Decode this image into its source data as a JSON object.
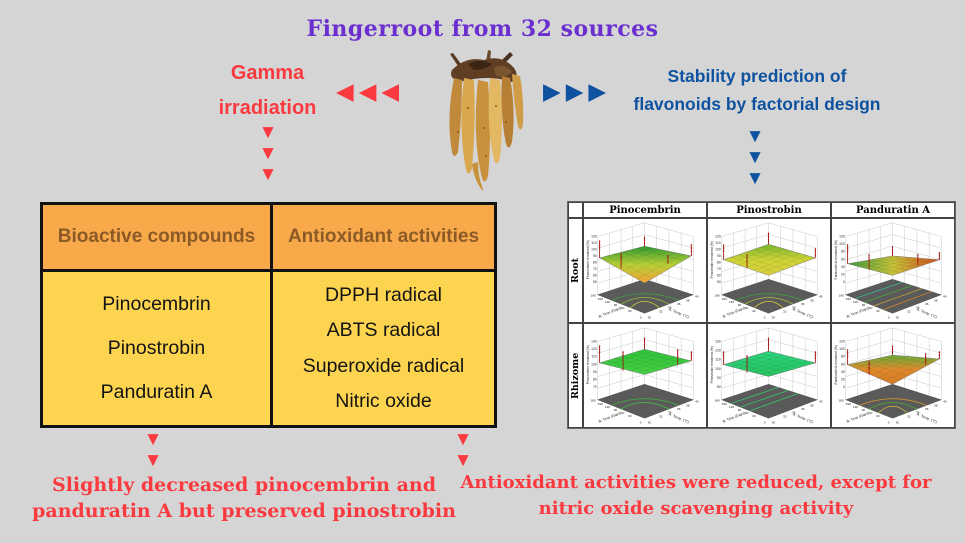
{
  "colors": {
    "background": "#d5d5d6",
    "title_purple": "#6b2fd0",
    "flow_red": "#fb3a40",
    "flow_blue": "#0e52a0",
    "table_header_bg": "#f8a94a",
    "table_header_text": "#8c5a26",
    "table_body_bg": "#fdd44f",
    "table_border": "#111111"
  },
  "title": {
    "text": "Fingerroot from 32 sources"
  },
  "glyphs": {
    "left_arrow": "◀",
    "right_arrow": "▶",
    "down_arrow": "▼"
  },
  "flow": {
    "gamma": {
      "line1": "Gamma",
      "line2": "irradiation"
    },
    "stability": {
      "line1": "Stability prediction of",
      "line2": "flavonoids by factorial design"
    }
  },
  "center_image": {
    "description": "photograph of fingerroot (Boesenbergia) rhizome cluster"
  },
  "table": {
    "headers": [
      "Bioactive compounds",
      "Antioxidant activities"
    ],
    "bioactive": [
      "Pinocembrin",
      "Pinostrobin",
      "Panduratin A"
    ],
    "antioxidant": [
      "DPPH radical",
      "ABTS radical",
      "Superoxide radical",
      "Nitric oxide"
    ]
  },
  "conclusions": {
    "left": {
      "line1": "Slightly decreased pinocembrin and",
      "line2": "panduratin A but preserved pinostrobin"
    },
    "right": {
      "line1": "Antioxidant activities were reduced, except for",
      "line2": "nitric oxide scavenging activity"
    }
  },
  "panel": {
    "columns": [
      "Pinocembrin",
      "Pinostrobin",
      "Panduratin A"
    ],
    "rows": [
      "Root",
      "Rhizome"
    ]
  },
  "chart_data": [
    {
      "row": "Root",
      "column": "Pinocembrin",
      "type": "surface3d",
      "zlabel": "Pinocembrin remained (%)",
      "zticks": [
        120,
        110,
        100,
        90,
        80,
        70,
        60,
        50
      ],
      "xlabel": "A: Temp. (°C)",
      "xticks": [
        30,
        32,
        34,
        36,
        38,
        40
      ],
      "ylabel": "B: Time (Days)",
      "yticks": [
        0,
        30,
        60,
        90,
        120,
        150,
        180
      ],
      "surface": "saddle surface, green centre with yellow-orange edges, red data stems, contour floor",
      "render": {
        "corners": [
          40,
          28,
          38,
          66
        ],
        "grad": [
          "#2f9a30",
          "#b8cf36",
          "#f0a23a"
        ],
        "gradAxis": "v",
        "contourType": "arc",
        "contourColors": [
          "#3f9e3f",
          "#8fbe3a",
          "#cfc93a"
        ],
        "stems": [
          [
            16,
            40,
            18
          ],
          [
            38,
            51,
            16
          ],
          [
            62,
            28,
            10
          ],
          [
            86,
            46,
            9
          ],
          [
            110,
            38,
            12
          ]
        ]
      }
    },
    {
      "row": "Root",
      "column": "Pinostrobin",
      "type": "surface3d",
      "zlabel": "Pinostrobin remained (%)",
      "zticks": [
        120,
        110,
        100,
        90,
        80,
        70,
        60,
        50
      ],
      "xlabel": "A: Temp. (°C)",
      "xticks": [
        30,
        32,
        34,
        36,
        38,
        40
      ],
      "ylabel": "B: Time (Days)",
      "yticks": [
        0,
        30,
        60,
        90,
        120,
        150,
        180
      ],
      "surface": "flat yellow-green tilted plane, red data stems, contour floor",
      "render": {
        "corners": [
          42,
          26,
          40,
          58
        ],
        "grad": [
          "#79b52e",
          "#cdd437",
          "#d8cf3a"
        ],
        "gradAxis": "v",
        "contourType": "arc",
        "contourColors": [
          "#3f9e3f",
          "#9fc43a",
          "#d8c93a"
        ],
        "stems": [
          [
            16,
            42,
            16
          ],
          [
            40,
            50,
            14
          ],
          [
            62,
            26,
            12
          ],
          [
            110,
            40,
            10
          ]
        ]
      }
    },
    {
      "row": "Root",
      "column": "Panduratin A",
      "type": "surface3d",
      "zlabel": "Panduratin A remained (%)",
      "zticks": [
        120,
        100,
        80,
        60,
        40,
        20,
        0
      ],
      "xlabel": "A: Temp. (°C)",
      "xticks": [
        30,
        32,
        34,
        36,
        38,
        40
      ],
      "ylabel": "B: Time (Days)",
      "yticks": [
        0,
        30,
        60,
        90,
        120,
        150,
        180
      ],
      "surface": "thin tilted surface, green left grading to red-orange right, red data stems",
      "render": {
        "corners": [
          46,
          38,
          42,
          58
        ],
        "grad": [
          "#3f9e3f",
          "#c9c23a",
          "#cf4a1e"
        ],
        "gradAxis": "h",
        "contourType": "line",
        "contourColors": [
          "#3ab8a0",
          "#4aa83a",
          "#c9a23a",
          "#d8862c"
        ],
        "stems": [
          [
            16,
            46,
            20
          ],
          [
            38,
            52,
            16
          ],
          [
            62,
            38,
            10
          ],
          [
            88,
            48,
            12
          ],
          [
            110,
            42,
            8
          ]
        ]
      }
    },
    {
      "row": "Rhizome",
      "column": "Pinocembrin",
      "type": "surface3d",
      "zlabel": "Pinocembrin remained (%)",
      "zticks": [
        130,
        120,
        110,
        100,
        90,
        80,
        70
      ],
      "xlabel": "A: Temp. (°C)",
      "xticks": [
        30,
        32,
        34,
        36,
        38,
        40
      ],
      "ylabel": "B: Time (Days)",
      "yticks": [
        0,
        30,
        60,
        90,
        120,
        150,
        180
      ],
      "surface": "flat bright-green plane, red data stems, sparse contour floor",
      "render": {
        "corners": [
          40,
          26,
          38,
          52
        ],
        "grad": [
          "#2ec43a",
          "#49cf45"
        ],
        "gradAxis": "v",
        "contourType": "arc",
        "contourColors": [
          "#3fae3f",
          "#4abf4a"
        ],
        "stems": [
          [
            16,
            40,
            18
          ],
          [
            40,
            48,
            20
          ],
          [
            62,
            26,
            12
          ],
          [
            96,
            42,
            16
          ],
          [
            110,
            38,
            10
          ]
        ]
      }
    },
    {
      "row": "Rhizome",
      "column": "Pinostrobin",
      "type": "surface3d",
      "zlabel": "Pinostrobin remained (%)",
      "zticks": [
        130,
        120,
        110,
        100,
        90,
        80
      ],
      "xlabel": "A: Temp. (°C)",
      "xticks": [
        30,
        32,
        34,
        36,
        38,
        40
      ],
      "ylabel": "B: Time (Days)",
      "yticks": [
        0,
        30,
        60,
        90,
        120,
        150,
        180
      ],
      "surface": "flat emerald-green plane, red data stems, straight green contour lines on floor",
      "render": {
        "corners": [
          42,
          28,
          40,
          54
        ],
        "grad": [
          "#2ad47e",
          "#29c360"
        ],
        "gradAxis": "v",
        "contourType": "line",
        "contourColors": [
          "#35c96a",
          "#35c96a",
          "#35c96a"
        ],
        "stems": [
          [
            16,
            42,
            14
          ],
          [
            40,
            50,
            18
          ],
          [
            62,
            28,
            14
          ],
          [
            110,
            40,
            12
          ]
        ]
      }
    },
    {
      "row": "Rhizome",
      "column": "Panduratin A",
      "type": "surface3d",
      "zlabel": "Panduratin A remained (%)",
      "zticks": [
        120,
        100,
        80,
        60,
        40,
        20,
        0
      ],
      "xlabel": "A: Temp. (°C)",
      "xticks": [
        30,
        32,
        34,
        36,
        38,
        40
      ],
      "ylabel": "B: Time (Days)",
      "yticks": [
        0,
        30,
        60,
        90,
        120,
        150,
        180
      ],
      "surface": "saddle surface, orange centre with green edges, red data stems, contour floor",
      "render": {
        "corners": [
          42,
          32,
          36,
          62
        ],
        "grad": [
          "#6aae3a",
          "#e08a2c",
          "#d07a28"
        ],
        "gradAxis": "v",
        "contourType": "arc",
        "contourColors": [
          "#d8962c",
          "#4aa83a",
          "#c9b83a"
        ],
        "stems": [
          [
            16,
            42,
            16
          ],
          [
            38,
            52,
            14
          ],
          [
            62,
            32,
            10
          ],
          [
            96,
            42,
            12
          ],
          [
            110,
            36,
            8
          ]
        ]
      }
    }
  ]
}
